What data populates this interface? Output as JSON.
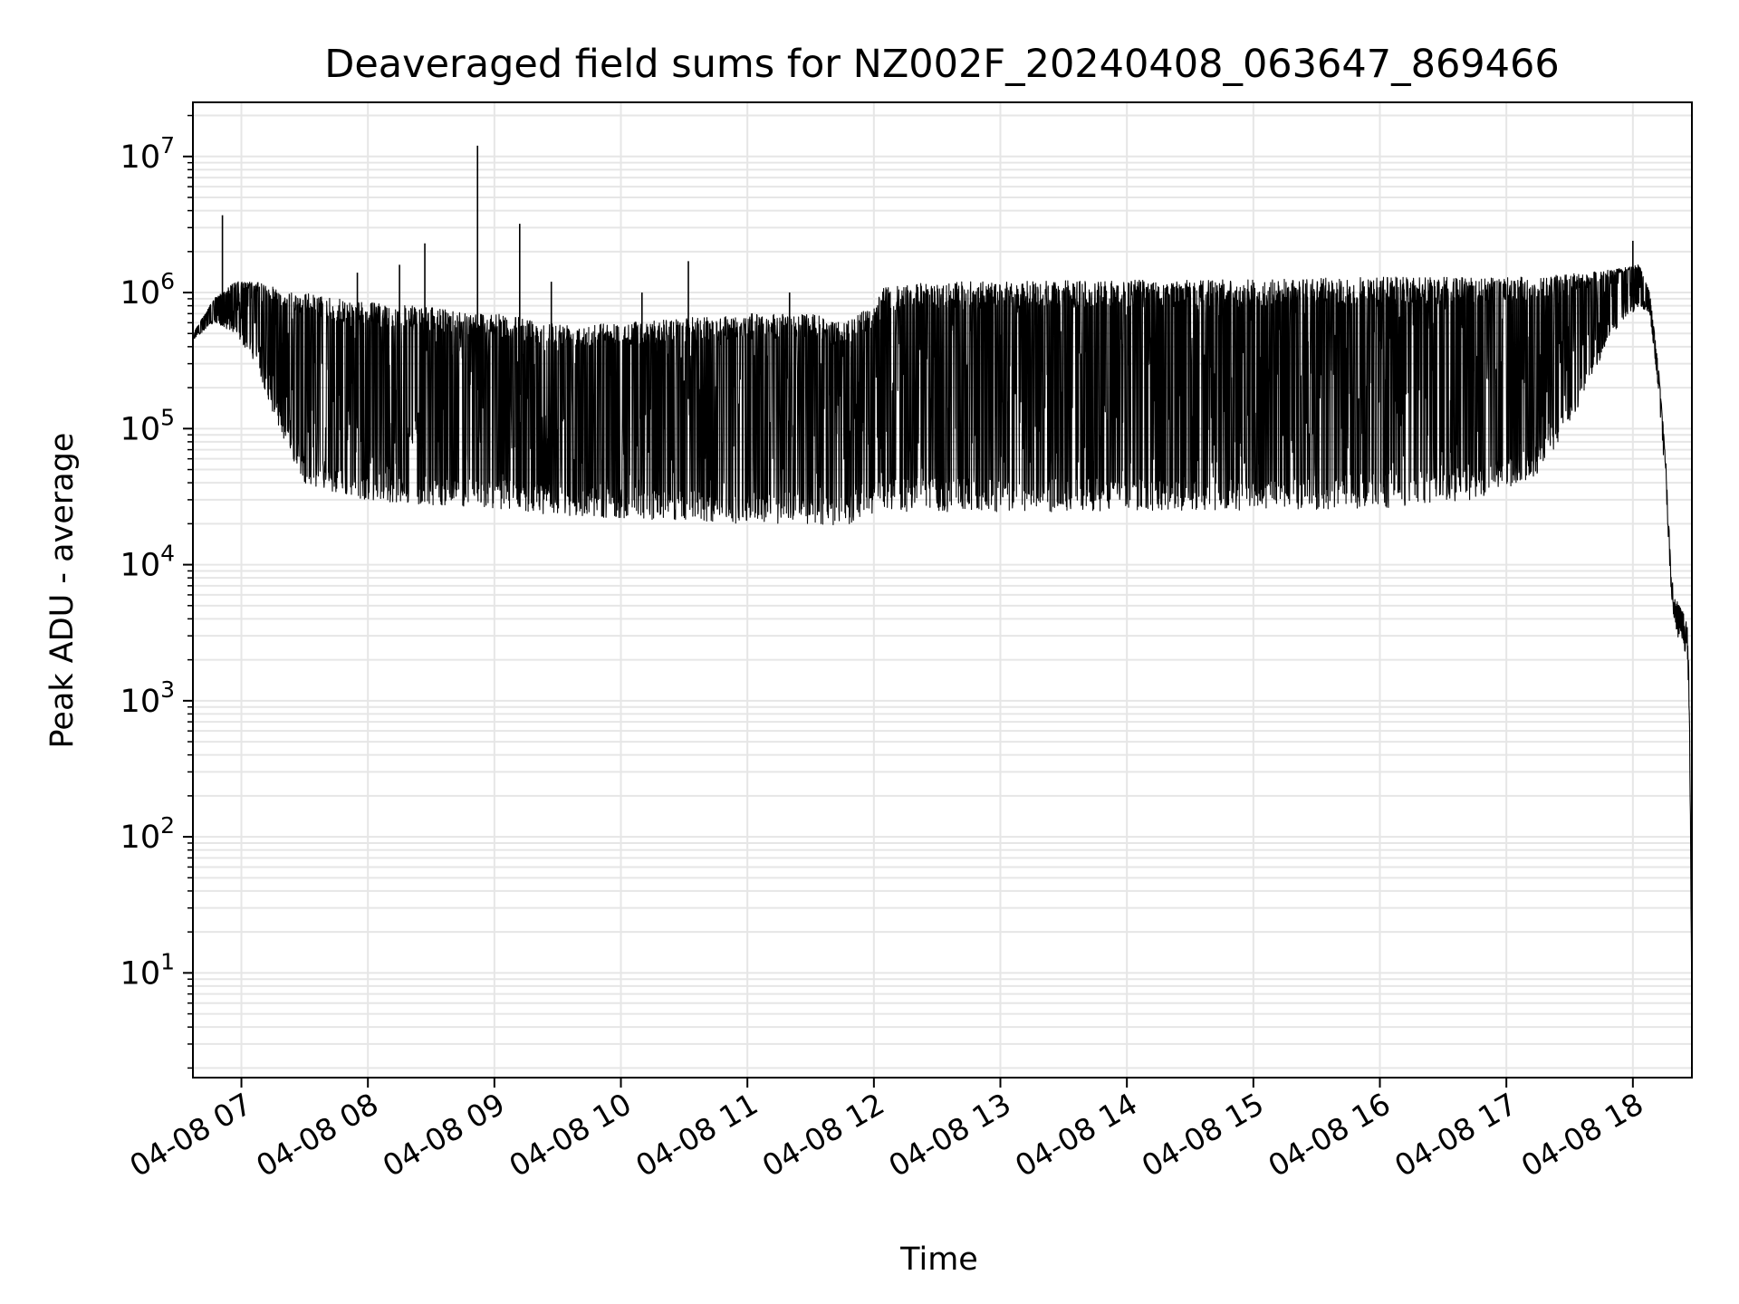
{
  "chart_data": {
    "type": "line",
    "title": "Deaveraged field sums for NZ002F_20240408_063647_869466",
    "xlabel": "Time",
    "ylabel": "Peak ADU - average",
    "yscale": "log",
    "xlim": [
      "2024-04-08 06:37",
      "2024-04-08 18:28"
    ],
    "ylim": [
      1.7,
      25000000
    ],
    "grid": true,
    "line_color": "#000000",
    "grid_color": "#e6e6e6",
    "x_ticks": [
      {
        "x": "2024-04-08 07:00",
        "label": "04-08 07"
      },
      {
        "x": "2024-04-08 08:00",
        "label": "04-08 08"
      },
      {
        "x": "2024-04-08 09:00",
        "label": "04-08 09"
      },
      {
        "x": "2024-04-08 10:00",
        "label": "04-08 10"
      },
      {
        "x": "2024-04-08 11:00",
        "label": "04-08 11"
      },
      {
        "x": "2024-04-08 12:00",
        "label": "04-08 12"
      },
      {
        "x": "2024-04-08 13:00",
        "label": "04-08 13"
      },
      {
        "x": "2024-04-08 14:00",
        "label": "04-08 14"
      },
      {
        "x": "2024-04-08 15:00",
        "label": "04-08 15"
      },
      {
        "x": "2024-04-08 16:00",
        "label": "04-08 16"
      },
      {
        "x": "2024-04-08 17:00",
        "label": "04-08 17"
      },
      {
        "x": "2024-04-08 18:00",
        "label": "04-08 18"
      }
    ],
    "y_ticks": [
      {
        "value": 10,
        "base": "10",
        "exp": "1"
      },
      {
        "value": 100,
        "base": "10",
        "exp": "2"
      },
      {
        "value": 1000,
        "base": "10",
        "exp": "3"
      },
      {
        "value": 10000,
        "base": "10",
        "exp": "4"
      },
      {
        "value": 100000,
        "base": "10",
        "exp": "5"
      },
      {
        "value": 1000000,
        "base": "10",
        "exp": "6"
      },
      {
        "value": 10000000,
        "base": "10",
        "exp": "7"
      }
    ],
    "envelope": [
      {
        "x": "2024-04-08 06:37",
        "upper": 500000,
        "lower": 450000
      },
      {
        "x": "2024-04-08 06:47",
        "upper": 900000,
        "lower": 600000
      },
      {
        "x": "2024-04-08 06:57",
        "upper": 1200000,
        "lower": 500000
      },
      {
        "x": "2024-04-08 07:07",
        "upper": 1200000,
        "lower": 300000
      },
      {
        "x": "2024-04-08 07:15",
        "upper": 1100000,
        "lower": 130000
      },
      {
        "x": "2024-04-08 07:22",
        "upper": 1000000,
        "lower": 70000
      },
      {
        "x": "2024-04-08 07:30",
        "upper": 1000000,
        "lower": 40000
      },
      {
        "x": "2024-04-08 07:45",
        "upper": 900000,
        "lower": 33000
      },
      {
        "x": "2024-04-08 08:00",
        "upper": 850000,
        "lower": 30000
      },
      {
        "x": "2024-04-08 08:20",
        "upper": 800000,
        "lower": 28000
      },
      {
        "x": "2024-04-08 08:40",
        "upper": 750000,
        "lower": 27000
      },
      {
        "x": "2024-04-08 09:00",
        "upper": 700000,
        "lower": 26000
      },
      {
        "x": "2024-04-08 09:30",
        "upper": 600000,
        "lower": 23000
      },
      {
        "x": "2024-04-08 10:00",
        "upper": 600000,
        "lower": 22000
      },
      {
        "x": "2024-04-08 10:30",
        "upper": 650000,
        "lower": 21000
      },
      {
        "x": "2024-04-08 11:00",
        "upper": 700000,
        "lower": 20000
      },
      {
        "x": "2024-04-08 11:30",
        "upper": 700000,
        "lower": 20000
      },
      {
        "x": "2024-04-08 11:45",
        "upper": 600000,
        "lower": 19000
      },
      {
        "x": "2024-04-08 12:00",
        "upper": 800000,
        "lower": 22000
      },
      {
        "x": "2024-04-08 12:05",
        "upper": 1100000,
        "lower": 25000
      },
      {
        "x": "2024-04-08 12:30",
        "upper": 1200000,
        "lower": 24000
      },
      {
        "x": "2024-04-08 13:00",
        "upper": 1200000,
        "lower": 24000
      },
      {
        "x": "2024-04-08 14:00",
        "upper": 1250000,
        "lower": 25000
      },
      {
        "x": "2024-04-08 15:00",
        "upper": 1250000,
        "lower": 25000
      },
      {
        "x": "2024-04-08 16:00",
        "upper": 1300000,
        "lower": 26000
      },
      {
        "x": "2024-04-08 16:45",
        "upper": 1300000,
        "lower": 30000
      },
      {
        "x": "2024-04-08 17:15",
        "upper": 1300000,
        "lower": 45000
      },
      {
        "x": "2024-04-08 17:35",
        "upper": 1400000,
        "lower": 150000
      },
      {
        "x": "2024-04-08 17:50",
        "upper": 1500000,
        "lower": 500000
      },
      {
        "x": "2024-04-08 18:03",
        "upper": 1600000,
        "lower": 800000
      },
      {
        "x": "2024-04-08 18:08",
        "upper": 1000000,
        "lower": 700000
      },
      {
        "x": "2024-04-08 18:12",
        "upper": 300000,
        "lower": 200000
      },
      {
        "x": "2024-04-08 18:16",
        "upper": 50000,
        "lower": 30000
      },
      {
        "x": "2024-04-08 18:18",
        "upper": 10000,
        "lower": 5000
      },
      {
        "x": "2024-04-08 18:20",
        "upper": 6000,
        "lower": 3000
      },
      {
        "x": "2024-04-08 18:24",
        "upper": 4500,
        "lower": 2500
      },
      {
        "x": "2024-04-08 18:26",
        "upper": 3500,
        "lower": 2000
      },
      {
        "x": "2024-04-08 18:27",
        "upper": 800,
        "lower": 300
      },
      {
        "x": "2024-04-08 18:28",
        "upper": 5,
        "lower": 3.5
      }
    ],
    "spikes": [
      {
        "x": "2024-04-08 06:51",
        "y": 3700000
      },
      {
        "x": "2024-04-08 08:27",
        "y": 2300000
      },
      {
        "x": "2024-04-08 08:52",
        "y": 12000000
      },
      {
        "x": "2024-04-08 09:12",
        "y": 3200000
      },
      {
        "x": "2024-04-08 08:15",
        "y": 1600000
      },
      {
        "x": "2024-04-08 07:55",
        "y": 1400000
      },
      {
        "x": "2024-04-08 09:27",
        "y": 1200000
      },
      {
        "x": "2024-04-08 10:32",
        "y": 1700000
      },
      {
        "x": "2024-04-08 10:10",
        "y": 1000000
      },
      {
        "x": "2024-04-08 11:20",
        "y": 1000000
      },
      {
        "x": "2024-04-08 18:00",
        "y": 2400000
      }
    ]
  }
}
